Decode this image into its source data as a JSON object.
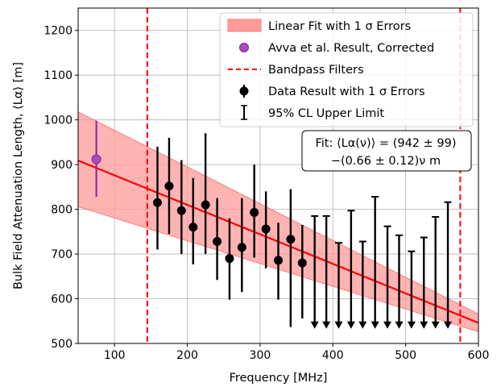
{
  "chart_data": {
    "type": "scatter",
    "xlabel": "Frequency [MHz]",
    "ylabel": "Bulk Field Attenuation Length, ⟨Lα⟩ [m]",
    "xlim": [
      50,
      600
    ],
    "ylim": [
      500,
      1250
    ],
    "xticks": [
      100,
      200,
      300,
      400,
      500,
      600
    ],
    "yticks": [
      500,
      600,
      700,
      800,
      900,
      1000,
      1100,
      1200
    ],
    "grid": true,
    "legend_position": "top-right",
    "legend": [
      "Linear Fit with 1 σ Errors",
      "Avva et al. Result, Corrected",
      "Bandpass Filters",
      "Data Result with 1 σ Errors",
      "95% CL Upper Limit"
    ],
    "fit_annotation": {
      "line1": "Fit: ⟨Lα(ν)⟩ = (942 ± 99)",
      "line2": "−(0.66 ± 0.12)ν m"
    },
    "fit": {
      "intercept": 942,
      "slope": -0.66,
      "band_upper": [
        [
          50,
          1018
        ],
        [
          600,
          566
        ]
      ],
      "band_lower": [
        [
          50,
          806
        ],
        [
          600,
          526
        ]
      ],
      "color": "#ff0000",
      "band_color": "#ff9a9a"
    },
    "bandpass_filters": [
      145,
      575
    ],
    "avva_point": {
      "x": 75,
      "y": 912,
      "err_low": 828,
      "err_high": 998,
      "color": "#8b1e9e"
    },
    "data_points": [
      {
        "x": 159,
        "y": 815,
        "lo": 710,
        "hi": 940
      },
      {
        "x": 175,
        "y": 852,
        "lo": 745,
        "hi": 960
      },
      {
        "x": 192,
        "y": 797,
        "lo": 700,
        "hi": 910
      },
      {
        "x": 208,
        "y": 760,
        "lo": 677,
        "hi": 870
      },
      {
        "x": 225,
        "y": 810,
        "lo": 700,
        "hi": 970
      },
      {
        "x": 241,
        "y": 728,
        "lo": 642,
        "hi": 825
      },
      {
        "x": 258,
        "y": 690,
        "lo": 598,
        "hi": 780
      },
      {
        "x": 275,
        "y": 715,
        "lo": 615,
        "hi": 825
      },
      {
        "x": 292,
        "y": 793,
        "lo": 692,
        "hi": 900
      },
      {
        "x": 308,
        "y": 756,
        "lo": 668,
        "hi": 840
      },
      {
        "x": 325,
        "y": 686,
        "lo": 598,
        "hi": 770
      },
      {
        "x": 342,
        "y": 733,
        "lo": 537,
        "hi": 845
      },
      {
        "x": 358,
        "y": 680,
        "lo": 556,
        "hi": 765
      }
    ],
    "upper_limits": [
      {
        "x": 375,
        "value": 785
      },
      {
        "x": 391,
        "value": 785
      },
      {
        "x": 408,
        "value": 725
      },
      {
        "x": 425,
        "value": 797
      },
      {
        "x": 441,
        "value": 728
      },
      {
        "x": 458,
        "value": 828
      },
      {
        "x": 475,
        "value": 762
      },
      {
        "x": 491,
        "value": 742
      },
      {
        "x": 508,
        "value": 706
      },
      {
        "x": 525,
        "value": 737
      },
      {
        "x": 541,
        "value": 783
      },
      {
        "x": 558,
        "value": 816
      }
    ]
  }
}
